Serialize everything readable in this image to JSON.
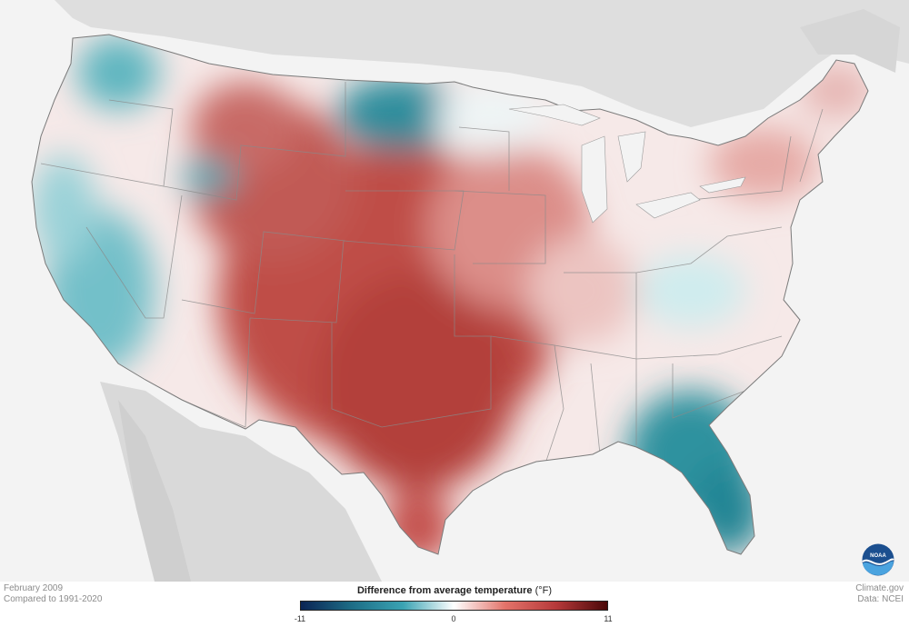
{
  "footer": {
    "period": "February 2009",
    "baseline": "Compared to 1991-2020",
    "source_site": "Climate.gov",
    "source_data": "Data: NCEI"
  },
  "legend": {
    "title": "Difference from average temperature",
    "unit": "(°F)",
    "min_label": "-11",
    "mid_label": "0",
    "max_label": "11",
    "min": -11,
    "max": 11,
    "colors": [
      "#0b2454",
      "#1d6d86",
      "#3aa3b3",
      "#ffffff",
      "#e3736a",
      "#b6393a",
      "#4a0808"
    ]
  },
  "logo": {
    "text": "NOAA"
  },
  "colors": {
    "land_background": "#d9d9d9",
    "ocean": "#f3f3f3",
    "boundaries": "#8a8a8a"
  }
}
